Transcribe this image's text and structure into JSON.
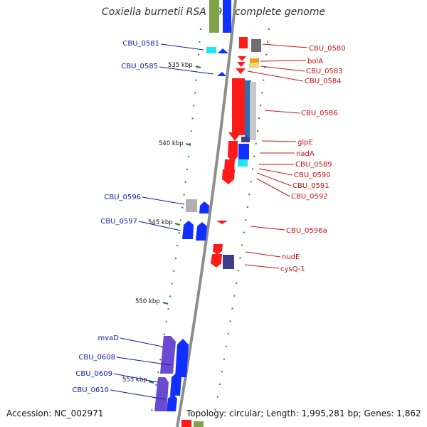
{
  "title": "Coxiella burnetii RSA 493, complete genome",
  "footer": {
    "accession": "Accession: NC_002971",
    "summary": "Topology: circular; Length: 1,995,281 bp; Genes: 1,862"
  },
  "colors": {
    "backbone": "#8c8c8c",
    "forward_label": "#0a1ea8",
    "reverse_label": "#cc1111",
    "tick": "#2e7d32"
  },
  "scale_ticks": [
    "535 kbp",
    "540 kbp",
    "545 kbp",
    "550 kbp",
    "555 kbp"
  ],
  "left_labels": [
    "CBU_0581",
    "CBU_0585",
    "CBU_0596",
    "CBU_0597",
    "mvaD",
    "CBU_0608",
    "CBU_0609",
    "CBU_0610"
  ],
  "right_labels": [
    "CBU_0580",
    "bolA",
    "CBU_0583",
    "CBU_0584",
    "CBU_0586",
    "glpE",
    "nadA",
    "CBU_0589",
    "CBU_0590",
    "CBU_0591",
    "CBU_0592",
    "CBU_0596a",
    "nudE",
    "cysQ-1"
  ]
}
